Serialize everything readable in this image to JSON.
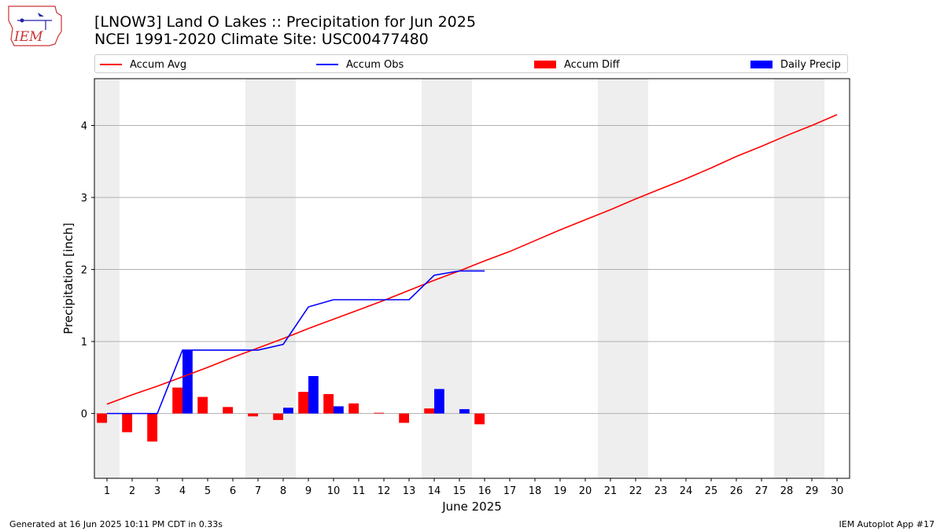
{
  "header": {
    "title_line1": "[LNOW3] Land O Lakes :: Precipitation for Jun 2025",
    "title_line2": "NCEI 1991-2020 Climate Site: USC00477480",
    "logo_text": "IEM"
  },
  "legend": {
    "accum_avg": "Accum Avg",
    "accum_obs": "Accum Obs",
    "accum_diff": "Accum Diff",
    "daily_precip": "Daily Precip"
  },
  "footer": {
    "generated": "Generated at 16 Jun 2025 10:11 PM CDT in 0.33s",
    "app": "IEM Autoplot App #17"
  },
  "colors": {
    "accum_avg": "#ff0000",
    "accum_obs": "#0000ff",
    "accum_diff": "#ff0000",
    "daily_precip": "#0000ff",
    "weekend_shade": "#eeeeee",
    "grid": "#b0b0b0"
  },
  "chart_data": {
    "type": "bar",
    "xlabel": "June 2025",
    "ylabel": "Precipitation [inch]",
    "x_ticks": [
      "1",
      "2",
      "3",
      "4",
      "5",
      "6",
      "7",
      "8",
      "9",
      "10",
      "11",
      "12",
      "13",
      "14",
      "15",
      "16",
      "17",
      "18",
      "19",
      "20",
      "21",
      "22",
      "23",
      "24",
      "25",
      "26",
      "27",
      "28",
      "29",
      "30"
    ],
    "ylim": [
      -0.9,
      4.65
    ],
    "y_ticks": [
      0,
      1,
      2,
      3,
      4
    ],
    "grid": "horizontal",
    "weekend_days": [
      [
        0,
        1
      ],
      [
        7,
        8
      ],
      [
        14,
        15
      ],
      [
        21,
        22
      ],
      [
        28,
        29
      ]
    ],
    "series": [
      {
        "name": "Accum Avg",
        "kind": "line",
        "x": [
          1,
          2,
          3,
          4,
          5,
          6,
          7,
          8,
          9,
          10,
          11,
          12,
          13,
          14,
          15,
          16,
          17,
          18,
          19,
          20,
          21,
          22,
          23,
          24,
          25,
          26,
          27,
          28,
          29,
          30
        ],
        "values": [
          0.13,
          0.26,
          0.38,
          0.51,
          0.64,
          0.78,
          0.91,
          1.04,
          1.18,
          1.31,
          1.44,
          1.57,
          1.71,
          1.85,
          1.98,
          2.12,
          2.25,
          2.4,
          2.55,
          2.69,
          2.83,
          2.98,
          3.12,
          3.26,
          3.41,
          3.57,
          3.71,
          3.86,
          4.0,
          4.15
        ]
      },
      {
        "name": "Accum Obs",
        "kind": "line",
        "x": [
          1,
          2,
          3,
          4,
          5,
          6,
          7,
          8,
          9,
          10,
          11,
          12,
          13,
          14,
          15,
          16
        ],
        "values": [
          0.0,
          0.0,
          0.0,
          0.88,
          0.88,
          0.88,
          0.88,
          0.96,
          1.48,
          1.58,
          1.58,
          1.58,
          1.58,
          1.92,
          1.98,
          1.98
        ]
      },
      {
        "name": "Accum Diff",
        "kind": "bar",
        "x": [
          1,
          2,
          3,
          4,
          5,
          6,
          7,
          8,
          9,
          10,
          11,
          12,
          13,
          14,
          15,
          16
        ],
        "values": [
          -0.13,
          -0.26,
          -0.39,
          0.36,
          0.23,
          0.09,
          -0.04,
          -0.09,
          0.3,
          0.27,
          0.14,
          0.01,
          -0.13,
          0.07,
          0.0,
          -0.15
        ]
      },
      {
        "name": "Daily Precip",
        "kind": "bar",
        "x": [
          1,
          2,
          3,
          4,
          5,
          6,
          7,
          8,
          9,
          10,
          11,
          12,
          13,
          14,
          15,
          16
        ],
        "values": [
          0.0,
          0.0,
          0.0,
          0.88,
          0.0,
          0.0,
          0.0,
          0.08,
          0.52,
          0.1,
          0.0,
          0.0,
          0.0,
          0.34,
          0.06,
          0.0
        ]
      }
    ]
  }
}
